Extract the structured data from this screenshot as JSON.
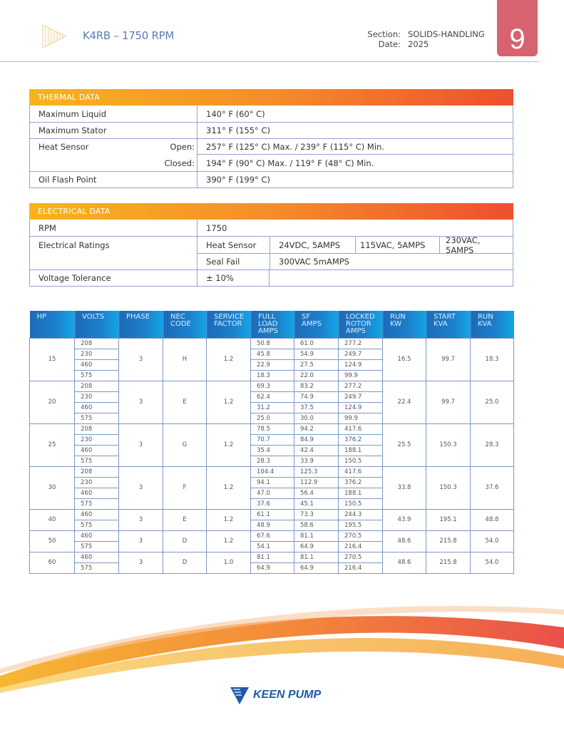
{
  "header": {
    "title": "K4RB – 1750 RPM",
    "section_label": "Section:",
    "section_value": "SOLIDS-HANDLING",
    "date_label": "Date:",
    "date_value": "2025",
    "page_number": "9"
  },
  "thermal": {
    "title": "THERMAL DATA",
    "max_liquid_label": "Maximum Liquid",
    "max_liquid": "140° F (60° C)",
    "max_stator_label": "Maximum Stator",
    "max_stator": "311° F (155° C)",
    "heat_sensor_label": "Heat Sensor",
    "open_label": "Open:",
    "open_value": "257° F (125° C) Max. / 239° F (115° C) Min.",
    "closed_label": "Closed:",
    "closed_value": "194° F (90° C) Max. / 119° F (48° C) Min.",
    "oil_label": "Oil Flash Point",
    "oil_value": "390° F (199° C)"
  },
  "electrical": {
    "title": "ELECTRICAL DATA",
    "rpm_label": "RPM",
    "rpm": "1750",
    "ratings_label": "Electrical Ratings",
    "heat_sensor_label": "Heat Sensor",
    "heat_sensor_values": [
      "24VDC, 5AMPS",
      "115VAC, 5AMPS",
      "230VAC, 5AMPS"
    ],
    "seal_fail_label": "Seal Fail",
    "seal_fail": "300VAC 5mAMPS",
    "tolerance_label": "Voltage Tolerance",
    "tolerance": "± 10%"
  },
  "motor_table": {
    "headers": [
      "HP",
      "VOLTS",
      "PHASE",
      "NEC CODE",
      "SERVICE FACTOR",
      "FULL LOAD AMPS",
      "SF AMPS",
      "LOCKED ROTOR AMPS",
      "RUN KW",
      "START KVA",
      "RUN KVA"
    ],
    "groups": [
      {
        "hp": "15",
        "phase": "3",
        "nec": "H",
        "sf": "1.2",
        "run_kw": "16.5",
        "start_kva": "99.7",
        "run_kva": "18.3",
        "rows": [
          [
            "208",
            "50.8",
            "61.0",
            "277.2"
          ],
          [
            "230",
            "45.8",
            "54.9",
            "249.7"
          ],
          [
            "460",
            "22.9",
            "27.5",
            "124.9"
          ],
          [
            "575",
            "18.3",
            "22.0",
            "99.9"
          ]
        ]
      },
      {
        "hp": "20",
        "phase": "3",
        "nec": "E",
        "sf": "1.2",
        "run_kw": "22.4",
        "start_kva": "99.7",
        "run_kva": "25.0",
        "rows": [
          [
            "208",
            "69.3",
            "83.2",
            "277.2"
          ],
          [
            "230",
            "62.4",
            "74.9",
            "249.7"
          ],
          [
            "460",
            "31.2",
            "37.5",
            "124.9"
          ],
          [
            "575",
            "25.0",
            "30.0",
            "99.9"
          ]
        ]
      },
      {
        "hp": "25",
        "phase": "3",
        "nec": "G",
        "sf": "1.2",
        "run_kw": "25.5",
        "start_kva": "150.3",
        "run_kva": "28.3",
        "rows": [
          [
            "208",
            "78.5",
            "94.2",
            "417.6"
          ],
          [
            "230",
            "70.7",
            "84.9",
            "376.2"
          ],
          [
            "460",
            "35.4",
            "42.4",
            "188.1"
          ],
          [
            "575",
            "28.3",
            "33.9",
            "150.5"
          ]
        ]
      },
      {
        "hp": "30",
        "phase": "3",
        "nec": "F",
        "sf": "1.2",
        "run_kw": "33.8",
        "start_kva": "150.3",
        "run_kva": "37.6",
        "rows": [
          [
            "208",
            "104.4",
            "125.3",
            "417.6"
          ],
          [
            "230",
            "94.1",
            "112.9",
            "376.2"
          ],
          [
            "460",
            "47.0",
            "56.4",
            "188.1"
          ],
          [
            "575",
            "37.6",
            "45.1",
            "150.5"
          ]
        ]
      },
      {
        "hp": "40",
        "phase": "3",
        "nec": "E",
        "sf": "1.2",
        "run_kw": "43.9",
        "start_kva": "195.1",
        "run_kva": "48.8",
        "rows": [
          [
            "460",
            "61.1",
            "73.3",
            "244.3"
          ],
          [
            "575",
            "48.9",
            "58.6",
            "195.5"
          ]
        ]
      },
      {
        "hp": "50",
        "phase": "3",
        "nec": "D",
        "sf": "1.2",
        "run_kw": "48.6",
        "start_kva": "215.8",
        "run_kva": "54.0",
        "rows": [
          [
            "460",
            "67.6",
            "81.1",
            "270.5"
          ],
          [
            "575",
            "54.1",
            "64.9",
            "216.4"
          ]
        ]
      },
      {
        "hp": "60",
        "phase": "3",
        "nec": "D",
        "sf": "1.0",
        "run_kw": "48.6",
        "start_kva": "215.8",
        "run_kva": "54.0",
        "rows": [
          [
            "460",
            "81.1",
            "81.1",
            "270.5"
          ],
          [
            "575",
            "64.9",
            "64.9",
            "216.4"
          ]
        ]
      }
    ]
  },
  "footer": {
    "logo_text": "KEEN PUMP"
  },
  "colors": {
    "page_tab": "#d6636f",
    "title": "#5a7fb5",
    "header_blue": "#1c6bb8",
    "section_orange": "#f58d2a"
  }
}
